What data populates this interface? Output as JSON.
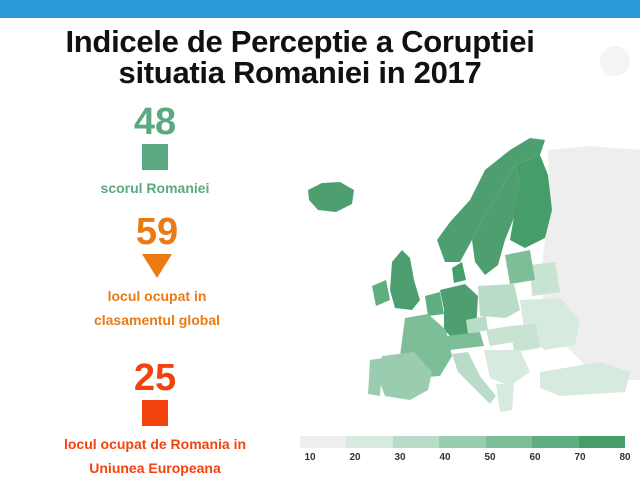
{
  "title": {
    "line1": "Indicele de Perceptie a Coruptiei",
    "line2": "situatia Romaniei in 2017"
  },
  "stats": {
    "score": {
      "value": "48",
      "label": "scorul Romaniei",
      "color": "#5aa982",
      "icon": "square-icon"
    },
    "global_rank": {
      "value": "59",
      "label_line1": "locul ocupat in",
      "label_line2": "clasamentul global",
      "color": "#ea7a14",
      "icon": "down-triangle-icon"
    },
    "eu_rank": {
      "value": "25",
      "label_line1": "locul ocupat de Romania in",
      "label_line2": "Uniunea Europeana",
      "color": "#f4420e",
      "icon": "square-icon"
    }
  },
  "legend": {
    "ticks": [
      "10",
      "20",
      "30",
      "40",
      "50",
      "60",
      "70",
      "80"
    ],
    "colors": [
      "#eeeeee",
      "#d6eadf",
      "#b9dcc8",
      "#9acdb0",
      "#7dbe98",
      "#5fae80",
      "#459e6a"
    ]
  },
  "map": {
    "type": "choropleth",
    "colors": {
      "low": "#c9e3d3",
      "mid": "#93c8a9",
      "high": "#4d9f70",
      "nodata": "#eeeeee"
    }
  }
}
